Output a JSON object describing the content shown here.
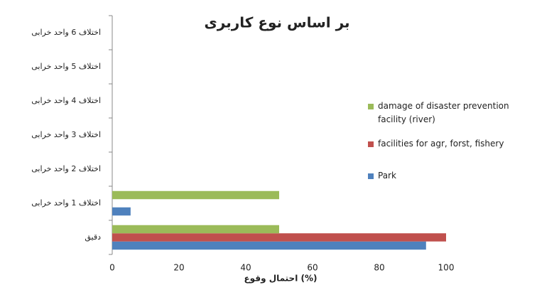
{
  "chart_data": {
    "type": "bar",
    "orientation": "horizontal",
    "title": "بر اساس نوع کاربری",
    "x_label": "احتمال وقوع (%)",
    "categories": [
      "دقیق",
      "اختلاف 1 واحد خرابی",
      "اختلاف 2 واحد خرابی",
      "اختلاف 3 واحد خرابی",
      "اختلاف 4 واحد خرابی",
      "اختلاف 5 واحد خرابی",
      "اختلاف 6 واحد خرابی"
    ],
    "series": [
      {
        "name": "Park",
        "color": "#4f81bd",
        "values": [
          94,
          5.5,
          0,
          0,
          0,
          0,
          0
        ]
      },
      {
        "name": "facilities for agr, forst, fishery",
        "color": "#c0504d",
        "values": [
          100,
          0,
          0,
          0,
          0,
          0,
          0
        ]
      },
      {
        "name": "damage of disaster prevention facility (river)",
        "color": "#9bbb59",
        "values": [
          50,
          50,
          0,
          0,
          0,
          0,
          0
        ]
      }
    ],
    "xlim": [
      0,
      100
    ],
    "xticks": [
      0,
      20,
      40,
      60,
      80,
      100
    ],
    "legend": "right"
  }
}
